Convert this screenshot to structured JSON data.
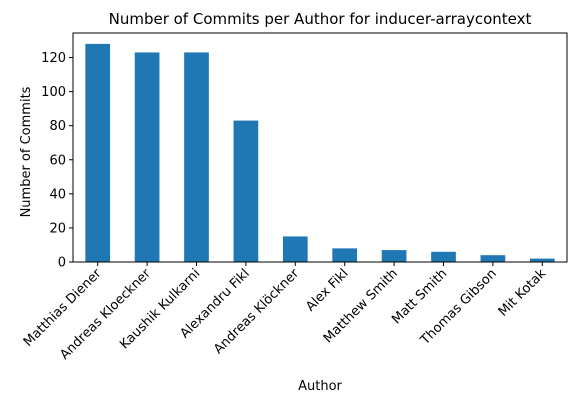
{
  "chart_data": {
    "type": "bar",
    "title": "Number of Commits per Author for inducer-arraycontext",
    "xlabel": "Author",
    "ylabel": "Number of Commits",
    "categories": [
      "Matthias Diener",
      "Andreas Kloeckner",
      "Kaushik Kulkarni",
      "Alexandru Fikl",
      "Andreas Klöckner",
      "Alex Fikl",
      "Matthew Smith",
      "Matt Smith",
      "Thomas Gibson",
      "Mit Kotak"
    ],
    "values": [
      128,
      123,
      123,
      83,
      15,
      8,
      7,
      6,
      4,
      2
    ],
    "ylim": [
      0,
      134.4
    ],
    "yticks": [
      0,
      20,
      40,
      60,
      80,
      100,
      120
    ],
    "bar_color": "#1f77b4",
    "grid": false,
    "legend": "none"
  }
}
